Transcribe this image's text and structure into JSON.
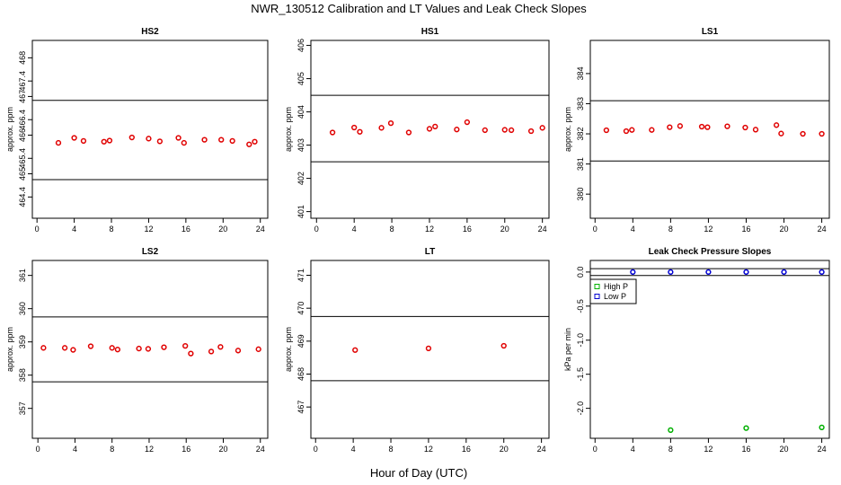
{
  "main_title": "NWR_130512  Calibration and LT Values and Leak Check Slopes",
  "x_axis_label": "Hour of Day (UTC)",
  "chart_data": [
    {
      "type": "scatter",
      "title": "HS2",
      "ylabel": "approx. ppm",
      "xlim": [
        -0.5,
        24.8
      ],
      "ylim": [
        463.85,
        468.45
      ],
      "x_ticks": [
        0,
        4,
        8,
        12,
        16,
        20,
        24
      ],
      "y_ticks": [
        464.4,
        465,
        465.4,
        466,
        466.4,
        467,
        467.4,
        468
      ],
      "hlines": [
        466.9,
        464.85
      ],
      "point_color": "#e00000",
      "series": [
        {
          "x": [
            2.3,
            4.0,
            5.0,
            7.2,
            7.8,
            10.2,
            12.0,
            13.2,
            15.2,
            15.8,
            18.0,
            19.8,
            21.0,
            22.8,
            23.4
          ],
          "y": [
            465.8,
            465.93,
            465.85,
            465.83,
            465.86,
            465.94,
            465.91,
            465.84,
            465.93,
            465.8,
            465.88,
            465.88,
            465.85,
            465.76,
            465.83
          ]
        }
      ]
    },
    {
      "type": "scatter",
      "title": "HS1",
      "ylabel": "approx. ppm",
      "xlim": [
        -0.6,
        24.7
      ],
      "ylim": [
        400.8,
        406.15
      ],
      "x_ticks": [
        0,
        4,
        8,
        12,
        16,
        20,
        24
      ],
      "y_ticks": [
        401,
        402,
        403,
        404,
        405,
        406
      ],
      "hlines": [
        404.5,
        402.5
      ],
      "point_color": "#e00000",
      "series": [
        {
          "x": [
            1.7,
            4.0,
            4.6,
            6.9,
            7.9,
            9.8,
            12.0,
            12.6,
            14.9,
            16.0,
            17.9,
            20.0,
            20.7,
            22.8,
            24.0
          ],
          "y": [
            403.38,
            403.53,
            403.4,
            403.52,
            403.66,
            403.38,
            403.49,
            403.56,
            403.47,
            403.69,
            403.45,
            403.46,
            403.45,
            403.42,
            403.52
          ]
        }
      ]
    },
    {
      "type": "scatter",
      "title": "LS1",
      "ylabel": "approx. ppm",
      "xlim": [
        -0.5,
        24.8
      ],
      "ylim": [
        379.2,
        385.1
      ],
      "x_ticks": [
        0,
        4,
        8,
        12,
        16,
        20,
        24
      ],
      "y_ticks": [
        380,
        381,
        382,
        383,
        384
      ],
      "hlines": [
        383.1,
        381.1
      ],
      "point_color": "#e00000",
      "series": [
        {
          "x": [
            1.2,
            3.3,
            3.9,
            6.0,
            7.9,
            9.0,
            11.3,
            11.9,
            14.0,
            15.9,
            17.0,
            19.2,
            19.7,
            22.0,
            24.0
          ],
          "y": [
            382.12,
            382.09,
            382.13,
            382.13,
            382.22,
            382.26,
            382.24,
            382.22,
            382.25,
            382.21,
            382.14,
            382.29,
            382.01,
            382.0,
            382.0
          ]
        }
      ]
    },
    {
      "type": "scatter",
      "title": "LS2",
      "ylabel": "approx. ppm",
      "xlim": [
        -0.6,
        24.8
      ],
      "ylim": [
        356.1,
        361.45
      ],
      "x_ticks": [
        0,
        4,
        8,
        12,
        16,
        20,
        24
      ],
      "y_ticks": [
        357,
        358,
        359,
        360,
        361
      ],
      "hlines": [
        359.75,
        357.8
      ],
      "point_color": "#e00000",
      "series": [
        {
          "x": [
            0.6,
            2.9,
            3.8,
            5.7,
            8.0,
            8.6,
            10.9,
            11.9,
            13.6,
            15.9,
            16.5,
            18.7,
            19.7,
            21.6,
            23.8
          ],
          "y": [
            358.82,
            358.82,
            358.76,
            358.87,
            358.82,
            358.77,
            358.8,
            358.79,
            358.84,
            358.88,
            358.65,
            358.71,
            358.85,
            358.74,
            358.78
          ]
        }
      ]
    },
    {
      "type": "scatter",
      "title": "LT",
      "ylabel": "approx. ppm",
      "xlim": [
        -0.5,
        24.8
      ],
      "ylim": [
        466.05,
        471.45
      ],
      "x_ticks": [
        0,
        4,
        8,
        12,
        16,
        20,
        24
      ],
      "y_ticks": [
        467,
        468,
        469,
        470,
        471
      ],
      "hlines": [
        469.75,
        467.8
      ],
      "point_color": "#e00000",
      "series": [
        {
          "x": [
            4.2,
            12.0,
            20.0
          ],
          "y": [
            468.73,
            468.78,
            468.86
          ]
        }
      ]
    },
    {
      "type": "scatter",
      "title": "Leak Check Pressure Slopes",
      "ylabel": "kPa per min",
      "xlim": [
        -0.5,
        24.8
      ],
      "ylim": [
        -2.44,
        0.17
      ],
      "x_ticks": [
        0,
        4,
        8,
        12,
        16,
        20,
        24
      ],
      "y_ticks": [
        0.0,
        -0.5,
        -1.0,
        -1.5,
        -2.0
      ],
      "y_tick_labels": [
        "0.0",
        "-0.5",
        "-1.0",
        "-1.5",
        "-2.0"
      ],
      "hlines": [
        0.05,
        -0.05
      ],
      "legend": {
        "placement": "top-left",
        "entries": [
          {
            "name": "High P",
            "color": "#00b000"
          },
          {
            "name": "Low P",
            "color": "#0000d0"
          }
        ]
      },
      "series": [
        {
          "name": "High P",
          "color": "#00b000",
          "x": [
            8.0,
            16.0,
            24.0
          ],
          "y": [
            -2.32,
            -2.29,
            -2.28
          ]
        },
        {
          "name": "Low P",
          "color": "#0000d0",
          "x": [
            4.0,
            8.0,
            12.0,
            16.0,
            20.0,
            24.0
          ],
          "y": [
            0.0,
            0.0,
            0.0,
            0.0,
            0.0,
            0.0
          ]
        }
      ]
    }
  ]
}
